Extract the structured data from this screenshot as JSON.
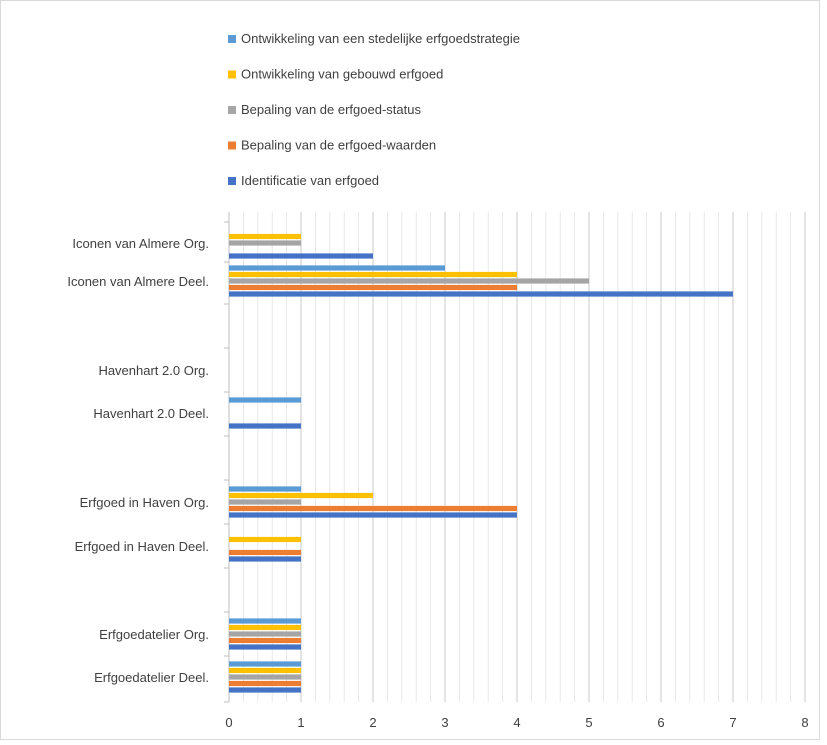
{
  "chart_data": {
    "type": "bar",
    "orientation": "horizontal",
    "categories": [
      "Erfgoedatelier Deel.",
      "Erfgoedatelier Org.",
      "Erfgoed in Haven Deel.",
      "Erfgoed in Haven Org.",
      "Havenhart 2.0 Deel.",
      "Havenhart 2.0 Org.",
      "Iconen van Almere Deel.",
      "Iconen van Almere Org."
    ],
    "series": [
      {
        "name": "Identificatie van erfgoed",
        "color": "#4472c4",
        "values": [
          1,
          1,
          1,
          4,
          1,
          0,
          7,
          2
        ]
      },
      {
        "name": "Bepaling van de erfgoed-waarden",
        "color": "#ed7d31",
        "values": [
          1,
          1,
          1,
          4,
          0,
          0,
          4,
          0
        ]
      },
      {
        "name": "Bepaling van de erfgoed-status",
        "color": "#a5a5a5",
        "values": [
          1,
          1,
          0,
          1,
          0,
          0,
          5,
          1
        ]
      },
      {
        "name": "Ontwikkeling van gebouwd erfgoed",
        "color": "#ffc000",
        "values": [
          1,
          1,
          1,
          2,
          0,
          0,
          4,
          1
        ]
      },
      {
        "name": "Ontwikkeling van een stedelijke erfgoedstrategie",
        "color": "#5b9bd5",
        "values": [
          1,
          1,
          0,
          1,
          1,
          0,
          3,
          0
        ]
      }
    ],
    "xlim": [
      0,
      8
    ],
    "xticks": [
      "0",
      "1",
      "2",
      "3",
      "4",
      "5",
      "6",
      "7",
      "8"
    ],
    "grid": true,
    "legend_position": "top"
  }
}
